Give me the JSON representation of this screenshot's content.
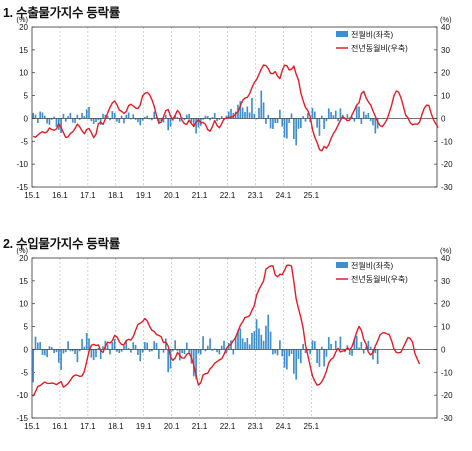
{
  "charts": [
    {
      "title": "1. 수출물가지수 등락률",
      "left_unit": "(%)",
      "right_unit": "(%)",
      "legend": {
        "bar": "전월비(좌축)",
        "line": "전년동월비(우축)"
      }
    },
    {
      "title": "2. 수입물가지수 등락률",
      "left_unit": "(%)",
      "right_unit": "(%)",
      "legend": {
        "bar": "전월비(좌축)",
        "line": "전년동월비(우축)"
      }
    }
  ],
  "colors": {
    "bar": "#3f8fcf",
    "line": "#e31d24",
    "grid": "#b4b4b4"
  },
  "chart_data": [
    {
      "type": "bar+line",
      "title": "1. 수출물가지수 등락률",
      "x_start": "2015-01",
      "x_end": "2025-06",
      "x_tick_labels": [
        "15.1",
        "16.1",
        "17.1",
        "18.1",
        "19.1",
        "20.1",
        "21.1",
        "22.1",
        "23.1",
        "24.1",
        "25.1"
      ],
      "grid": "vertical dashed at each January",
      "legend_position": "top-right",
      "left_axis": {
        "label": "(%)",
        "ylim": [
          -15,
          20
        ],
        "ticks": [
          -15,
          -10,
          -5,
          0,
          5,
          10,
          15,
          20
        ]
      },
      "right_axis": {
        "label": "(%)",
        "ylim": [
          -30,
          40
        ],
        "ticks": [
          -30,
          -20,
          -10,
          0,
          10,
          20,
          30,
          40
        ]
      },
      "series": [
        {
          "name": "전월비(좌축)",
          "axis": "left",
          "type": "bar",
          "values": [
            1.2,
            0.8,
            -1.0,
            1.5,
            1.3,
            0.6,
            -1.1,
            -1.4,
            -0.3,
            0.4,
            -1.8,
            -2.5,
            -3.2,
            1.0,
            -0.7,
            0.5,
            1.2,
            -0.9,
            -1.0,
            0.8,
            -0.3,
            1.2,
            0.5,
            2.0,
            2.5,
            -0.6,
            -1.2,
            -0.8,
            -0.4,
            -1.4,
            1.0,
            0.8,
            0.6,
            -0.4,
            1.6,
            1.2,
            -0.7,
            -1.0,
            0.6,
            -1.1,
            0.8,
            1.3,
            -0.2,
            0.9,
            -0.3,
            -0.8,
            -1.5,
            -0.5,
            0.3,
            0.6,
            -0.2,
            -0.4,
            1.5,
            0.4,
            -1.2,
            -0.6,
            -0.9,
            0.7,
            -2.6,
            -1.8,
            -0.5,
            0.6,
            0.3,
            -0.7,
            0.2,
            -0.4,
            0.8,
            1.0,
            -0.9,
            -1.9,
            -3.3,
            -2.0,
            -1.6,
            -0.3,
            0.6,
            0.5,
            -0.4,
            0.3,
            1.2,
            -0.6,
            -0.3,
            0.5,
            -0.4,
            0.6,
            1.5,
            2.1,
            1.2,
            1.5,
            3.0,
            3.8,
            2.4,
            1.4,
            2.6,
            1.3,
            4.5,
            1.0,
            -0.2,
            2.3,
            6.1,
            3.5,
            -1.2,
            0.8,
            -2.2,
            -2.3,
            -1.0,
            -1.0,
            1.9,
            -1.8,
            -4.2,
            -4.4,
            -1.0,
            1.1,
            -4.5,
            -5.9,
            -2.3,
            -2.1,
            0.5,
            -0.7,
            1.2,
            -0.8,
            2.3,
            1.5,
            -2.0,
            -3.8,
            0.6,
            -2.3,
            -0.6,
            2.2,
            1.4,
            0.7,
            1.7,
            -0.6,
            2.2,
            0.8,
            -0.2,
            0.9,
            0.2,
            0.4,
            -0.7,
            2.9,
            2.6,
            -1.2,
            1.5,
            0.8,
            1.2,
            -0.6,
            -1.5,
            -3.3,
            -2.2
          ]
        },
        {
          "name": "전년동월비(우축)",
          "axis": "right",
          "type": "line",
          "values": [
            -7.8,
            -8.2,
            -7.3,
            -6.4,
            -5.8,
            -6.3,
            -5.9,
            -4.2,
            -4.8,
            -5.2,
            -4.6,
            -2.4,
            -4.0,
            -6.2,
            -8.3,
            -8.1,
            -6.5,
            -5.9,
            -4.4,
            -2.5,
            -3.7,
            -5.4,
            -6.7,
            -4.8,
            -4.4,
            -6.2,
            -8.4,
            -6.9,
            -2.3,
            -1.6,
            -2.6,
            -0.3,
            2.4,
            4.8,
            6.8,
            7.6,
            6.0,
            3.7,
            3.1,
            2.2,
            3.0,
            5.6,
            6.2,
            5.4,
            4.6,
            4.3,
            5.9,
            9.8,
            11.0,
            11.4,
            10.4,
            8.2,
            5.4,
            1.2,
            -2.0,
            -1.6,
            0.7,
            3.4,
            3.9,
            1.0,
            -0.4,
            1.4,
            3.5,
            2.3,
            -1.0,
            -2.3,
            -2.6,
            -0.7,
            -2.3,
            -3.5,
            -1.7,
            -0.5,
            -2.0,
            -1.7,
            -2.6,
            -4.9,
            -5.6,
            -3.6,
            -0.9,
            -3.1,
            -4.1,
            -2.3,
            -0.1,
            0.0,
            0.5,
            0.6,
            0.9,
            1.9,
            3.0,
            5.4,
            7.9,
            8.9,
            9.2,
            10.8,
            13.5,
            15.7,
            17.0,
            19.3,
            21.6,
            23.4,
            23.1,
            21.8,
            19.7,
            19.6,
            20.5,
            18.5,
            17.4,
            21.0,
            23.3,
            23.1,
            21.2,
            21.5,
            22.9,
            19.3,
            16.8,
            11.2,
            7.7,
            4.8,
            3.4,
            0.9,
            -4.8,
            -8.2,
            -10.6,
            -13.6,
            -14.2,
            -12.2,
            -13.0,
            -11.5,
            -8.7,
            -6.6,
            -5.1,
            -2.9,
            -0.8,
            0.8,
            0.0,
            -1.0,
            -0.7,
            1.6,
            3.6,
            5.8,
            6.9,
            10.8,
            11.9,
            9.1,
            7.2,
            5.9,
            3.3,
            0.9,
            -1.4,
            -3.1,
            -3.6,
            -2.2,
            -0.5,
            2.5,
            5.8,
            9.9,
            12.0,
            11.5,
            9.1,
            5.5,
            1.5,
            0.3,
            -1.9,
            -2.8,
            -2.4,
            -2.6,
            -1.7,
            1.6,
            4.4,
            5.8,
            5.7,
            2.2,
            -0.6,
            -2.4,
            -4.0
          ]
        }
      ]
    },
    {
      "type": "bar+line",
      "title": "2. 수입물가지수 등락률",
      "x_start": "2015-01",
      "x_end": "2025-06",
      "x_tick_labels": [
        "15.1",
        "16.1",
        "17.1",
        "18.1",
        "19.1",
        "20.1",
        "21.1",
        "22.1",
        "23.1",
        "24.1",
        "25.1"
      ],
      "grid": "vertical dashed at each January",
      "legend_position": "top-right",
      "left_axis": {
        "label": "(%)",
        "ylim": [
          -15,
          20
        ],
        "ticks": [
          -15,
          -10,
          -5,
          0,
          5,
          10,
          15,
          20
        ]
      },
      "right_axis": {
        "label": "(%)",
        "ylim": [
          -30,
          40
        ],
        "ticks": [
          -30,
          -20,
          -10,
          0,
          10,
          20,
          30,
          40
        ]
      },
      "series": [
        {
          "name": "전월비(좌축)",
          "axis": "left",
          "type": "bar",
          "values": [
            -7.2,
            2.8,
            1.5,
            1.6,
            -1.2,
            -1.3,
            -1.7,
            0.7,
            0.5,
            -0.8,
            -0.6,
            -2.9,
            -4.5,
            -0.9,
            -0.6,
            1.8,
            -0.4,
            -0.4,
            -1.0,
            -2.8,
            -0.4,
            2.3,
            0.6,
            3.6,
            2.4,
            -1.8,
            -2.3,
            -1.7,
            0.3,
            -2.1,
            0.7,
            1.9,
            1.1,
            -1.1,
            1.6,
            2.3,
            -0.5,
            -0.8,
            -0.5,
            0.9,
            2.0,
            0.3,
            -0.7,
            1.6,
            1.0,
            -1.2,
            -2.6,
            -0.7,
            1.6,
            1.5,
            -0.5,
            -0.4,
            1.8,
            1.4,
            -2.1,
            0.0,
            -0.7,
            2.4,
            -5.0,
            -4.2,
            -0.4,
            2.0,
            -0.4,
            -2.4,
            -0.8,
            -1.0,
            1.5,
            -0.6,
            -3.1,
            -5.9,
            -6.5,
            -0.9,
            -1.1,
            2.9,
            -0.4,
            0.8,
            2.4,
            -0.3,
            0.2,
            -0.6,
            -1.1,
            0.8,
            1.9,
            -0.9,
            1.4,
            2.0,
            -1.1,
            3.0,
            4.1,
            4.6,
            2.4,
            1.6,
            2.5,
            1.1,
            3.6,
            4.0,
            6.6,
            4.6,
            3.2,
            1.9,
            5.2,
            7.6,
            3.9,
            -1.1,
            -0.9,
            -1.3,
            2.0,
            -1.5,
            -4.0,
            -4.4,
            -1.5,
            -1.0,
            -5.3,
            -6.6,
            -2.1,
            -3.0,
            1.2,
            -0.8,
            -0.3,
            -1.0,
            2.0,
            1.8,
            -3.0,
            -3.8,
            0.6,
            -3.7,
            -1.6,
            2.7,
            1.2,
            0.1,
            1.9,
            0.2,
            2.8,
            0.0,
            -0.6,
            0.9,
            -1.2,
            -1.4,
            2.3,
            3.0,
            0.4,
            1.6,
            -0.9,
            0.6,
            1.9,
            0.6,
            -2.2,
            -0.8,
            -3.2
          ]
        },
        {
          "name": "전년동월비(우축)",
          "axis": "right",
          "type": "line",
          "values": [
            -20.5,
            -18.5,
            -16.2,
            -15.8,
            -15.0,
            -14.3,
            -14.8,
            -14.9,
            -14.7,
            -14.9,
            -15.4,
            -14.7,
            -14.1,
            -16.5,
            -15.8,
            -14.9,
            -13.5,
            -11.9,
            -11.2,
            -11.3,
            -11.8,
            -11.6,
            -9.6,
            -5.3,
            -0.8,
            1.8,
            2.2,
            1.7,
            2.0,
            -0.4,
            -1.3,
            1.3,
            3.2,
            2.8,
            3.8,
            6.1,
            5.5,
            3.4,
            2.1,
            2.1,
            3.9,
            4.4,
            4.1,
            5.6,
            8.4,
            10.9,
            11.5,
            12.2,
            13.5,
            12.5,
            10.2,
            8.4,
            7.8,
            6.5,
            6.1,
            5.6,
            3.0,
            3.2,
            1.5,
            -3.2,
            -4.8,
            -3.8,
            -1.4,
            -2.5,
            -3.8,
            -3.7,
            -2.1,
            -1.5,
            -3.6,
            -6.8,
            -11.4,
            -15.6,
            -14.6,
            -11.2,
            -10.6,
            -10.4,
            -8.5,
            -7.5,
            -6.0,
            -5.3,
            -4.6,
            -4.1,
            -2.2,
            0.4,
            1.6,
            2.2,
            3.9,
            5.2,
            8.0,
            10.5,
            12.1,
            14.0,
            14.2,
            14.8,
            17.1,
            19.2,
            23.8,
            26.2,
            28.1,
            30.0,
            35.1,
            35.9,
            36.5,
            36.6,
            32.6,
            31.8,
            32.9,
            32.7,
            34.6,
            36.8,
            36.9,
            36.5,
            29.6,
            22.1,
            17.8,
            14.0,
            9.3,
            1.9,
            -2.6,
            -7.2,
            -11.6,
            -13.9,
            -15.6,
            -15.3,
            -14.1,
            -12.2,
            -9.5,
            -5.8,
            -4.3,
            -3.6,
            -1.1,
            0.5,
            -1.1,
            -0.7,
            -0.5,
            0.7,
            -0.2,
            1.3,
            4.3,
            7.6,
            10.1,
            8.4,
            4.4,
            2.4,
            -1.2,
            -2.4,
            -1.3,
            1.5,
            3.7,
            6.3,
            7.2,
            7.3,
            6.8,
            6.5,
            3.8,
            0.2,
            -1.3,
            -1.5,
            -1.2,
            0.9,
            3.0,
            5.2,
            4.8,
            3.2,
            -1.8,
            -4.1,
            -6.4
          ]
        }
      ]
    }
  ]
}
